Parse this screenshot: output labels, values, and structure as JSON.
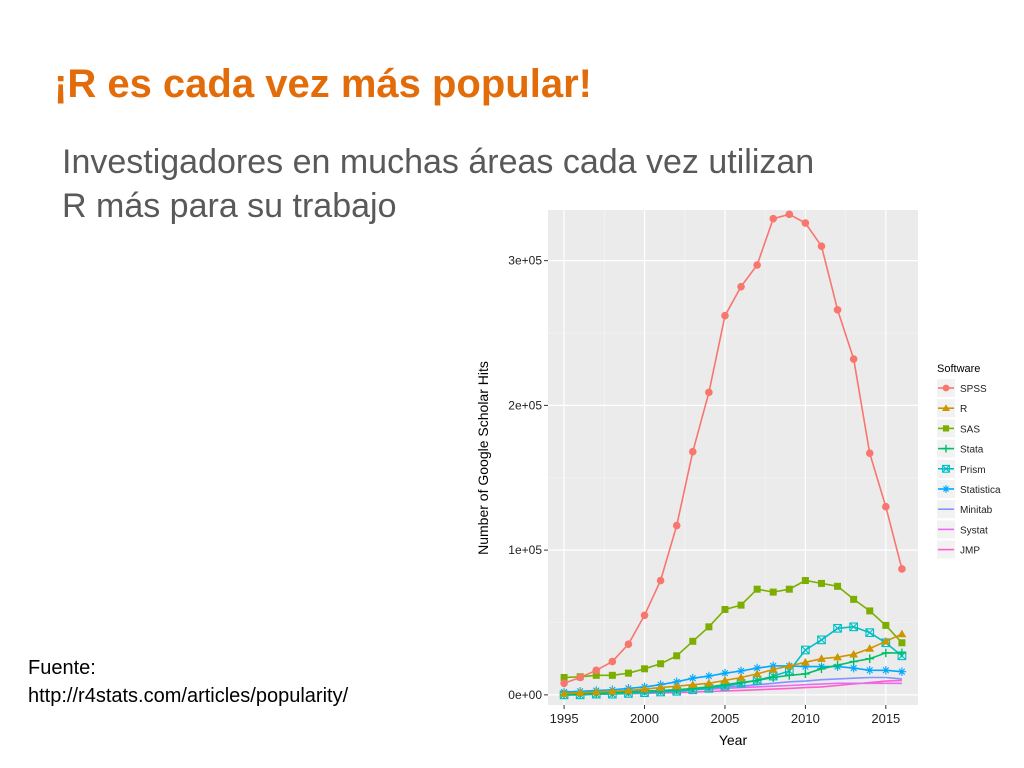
{
  "slide": {
    "title": "¡R es cada vez más popular!",
    "subtitle_line1": "Investigadores en muchas áreas cada vez utilizan",
    "subtitle_line2": "R más para su trabajo",
    "source_label": "Fuente:",
    "source_url": "http://r4stats.com/articles/popularity/"
  },
  "chart_data": {
    "type": "line",
    "xlabel": "Year",
    "ylabel": "Number of Google Scholar Hits",
    "xlim": [
      1994,
      2017
    ],
    "ylim": [
      -7000,
      335000
    ],
    "xticks": [
      1995,
      2000,
      2005,
      2010,
      2015
    ],
    "yticks": [
      {
        "value": 0,
        "label": "0e+00"
      },
      {
        "value": 100000,
        "label": "1e+05"
      },
      {
        "value": 200000,
        "label": "2e+05"
      },
      {
        "value": 300000,
        "label": "3e+05"
      }
    ],
    "grid": true,
    "legend_title": "Software",
    "legend_position": "right",
    "x": [
      1995,
      1996,
      1997,
      1998,
      1999,
      2000,
      2001,
      2002,
      2003,
      2004,
      2005,
      2006,
      2007,
      2008,
      2009,
      2010,
      2011,
      2012,
      2013,
      2014,
      2015,
      2016
    ],
    "series": [
      {
        "name": "SPSS",
        "color": "#f8766d",
        "marker": "circle",
        "values": [
          8000,
          12000,
          17000,
          23000,
          35000,
          55000,
          79000,
          117000,
          168000,
          209000,
          262000,
          282000,
          297000,
          329000,
          332000,
          326000,
          310000,
          266000,
          232000,
          167000,
          130000,
          87000
        ]
      },
      {
        "name": "R",
        "color": "#cd9600",
        "marker": "triangle",
        "values": [
          1000,
          1500,
          2000,
          2500,
          3000,
          4000,
          5000,
          6000,
          7000,
          8000,
          10000,
          12000,
          14500,
          17500,
          20000,
          22500,
          25000,
          26000,
          28000,
          32000,
          37000,
          42000
        ]
      },
      {
        "name": "SAS",
        "color": "#7cae00",
        "marker": "square",
        "values": [
          12000,
          12500,
          13500,
          13500,
          15000,
          18000,
          21500,
          27000,
          37000,
          47000,
          59000,
          62000,
          73000,
          71000,
          73000,
          79000,
          77000,
          75000,
          66000,
          58000,
          48000,
          36000
        ]
      },
      {
        "name": "Stata",
        "color": "#00be67",
        "marker": "plus",
        "values": [
          0,
          500,
          1000,
          1500,
          2000,
          2500,
          3000,
          3500,
          4500,
          5500,
          7000,
          8500,
          10000,
          12000,
          13500,
          14500,
          18000,
          20500,
          23000,
          25000,
          29000,
          29000
        ]
      },
      {
        "name": "Prism",
        "color": "#00bfc4",
        "marker": "boxcross",
        "values": [
          0,
          0,
          500,
          500,
          1000,
          1500,
          2000,
          2500,
          3500,
          4500,
          6000,
          8000,
          10000,
          13000,
          16500,
          31000,
          38000,
          46000,
          47000,
          43000,
          36000,
          27000
        ]
      },
      {
        "name": "Statistica",
        "color": "#00a9ff",
        "marker": "star",
        "values": [
          2000,
          2500,
          3000,
          3500,
          4500,
          5500,
          7000,
          9000,
          11500,
          13000,
          15000,
          16500,
          18500,
          20000,
          20000,
          19500,
          19500,
          19500,
          18500,
          17000,
          17000,
          16000
        ]
      },
      {
        "name": "Minitab",
        "color": "#8494ff",
        "marker": "none",
        "values": [
          1000,
          1200,
          1500,
          1800,
          2000,
          2500,
          3000,
          3500,
          4000,
          4500,
          5500,
          6000,
          7000,
          8000,
          9000,
          9500,
          10500,
          11000,
          11500,
          12000,
          12000,
          11000
        ]
      },
      {
        "name": "Systat",
        "color": "#e76bf3",
        "marker": "none",
        "values": [
          1500,
          1700,
          2000,
          2200,
          2500,
          2800,
          3000,
          3300,
          3600,
          4000,
          4500,
          5000,
          5500,
          6000,
          6500,
          7000,
          7500,
          8000,
          8000,
          8000,
          8000,
          8000
        ]
      },
      {
        "name": "JMP",
        "color": "#ff61cc",
        "marker": "none",
        "values": [
          0,
          200,
          400,
          600,
          800,
          1000,
          1300,
          1600,
          1900,
          2300,
          2700,
          3100,
          3500,
          4000,
          4500,
          5000,
          5500,
          6500,
          7500,
          8500,
          9500,
          10000
        ]
      }
    ]
  }
}
